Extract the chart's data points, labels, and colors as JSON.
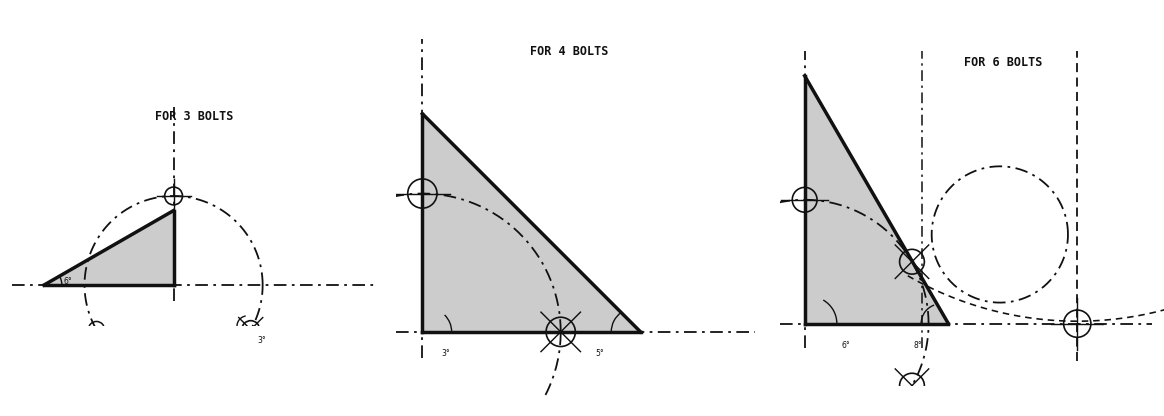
{
  "title1": "FOR 3 BOLTS",
  "title2": "FOR 4 BOLTS",
  "title3": "FOR 6 BOLTS",
  "bg_color": "#ffffff",
  "line_color": "#111111",
  "fill_color": "#cccccc",
  "lw_thick": 2.5,
  "lw_dash": 1.3,
  "lw_thin": 1.0
}
